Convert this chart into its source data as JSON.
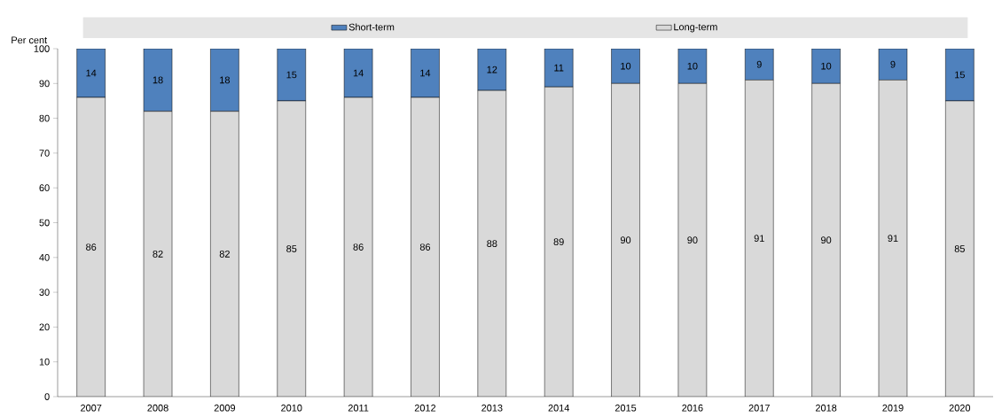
{
  "chart_data": {
    "type": "bar",
    "stacked": true,
    "ylabel": "Per cent",
    "categories": [
      "2007",
      "2008",
      "2009",
      "2010",
      "2011",
      "2012",
      "2013",
      "2014",
      "2015",
      "2016",
      "2017",
      "2018",
      "2019",
      "2020"
    ],
    "series": [
      {
        "name": "Long-term",
        "color": "#d9d9d9",
        "values": [
          86,
          82,
          82,
          85,
          86,
          86,
          88,
          89,
          90,
          90,
          91,
          90,
          91,
          85
        ]
      },
      {
        "name": "Short-term",
        "color": "#4f81bd",
        "values": [
          14,
          18,
          18,
          15,
          14,
          14,
          12,
          11,
          10,
          10,
          9,
          10,
          9,
          15
        ]
      }
    ],
    "ylim": [
      0,
      100
    ],
    "yticks": [
      0,
      10,
      20,
      30,
      40,
      50,
      60,
      70,
      80,
      90,
      100
    ],
    "legend": "top",
    "data_labels": true,
    "grid": false
  }
}
